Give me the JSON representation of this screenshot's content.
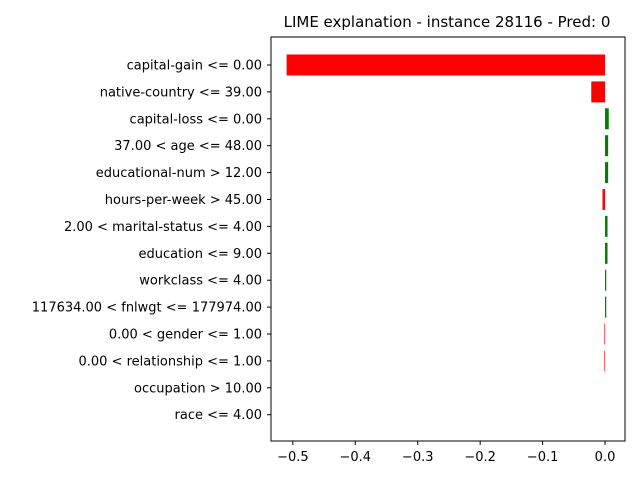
{
  "chart_data": {
    "type": "bar",
    "orientation": "horizontal",
    "title": "LIME explanation - instance 28116 - Pred: 0",
    "xlabel": "",
    "ylabel": "",
    "categories": [
      "capital-gain <= 0.00",
      "native-country <= 39.00",
      "capital-loss <= 0.00",
      "37.00 < age <= 48.00",
      "educational-num > 12.00",
      "hours-per-week > 45.00",
      "2.00 < marital-status <= 4.00",
      "education <= 9.00",
      "workclass <= 4.00",
      "117634.00 < fnlwgt <= 177974.00",
      "0.00 < gender <= 1.00",
      "0.00 < relationship <= 1.00",
      "occupation > 10.00",
      "race <= 4.00"
    ],
    "values": [
      -0.51,
      -0.022,
      0.006,
      0.005,
      0.005,
      -0.004,
      0.004,
      0.004,
      0.002,
      0.002,
      -0.001,
      -0.001,
      0.0,
      0.0
    ],
    "xlim": [
      -0.535,
      0.032
    ],
    "xticks": [
      -0.5,
      -0.4,
      -0.3,
      -0.2,
      -0.1,
      0.0
    ],
    "xtick_labels": [
      "−0.5",
      "−0.4",
      "−0.3",
      "−0.2",
      "−0.1",
      "0.0"
    ],
    "colors": {
      "positive": "#008000",
      "negative": "#ff0000"
    },
    "grid": false,
    "legend": "none"
  }
}
